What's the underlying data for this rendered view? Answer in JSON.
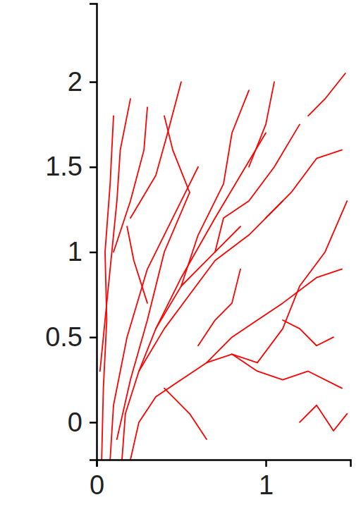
{
  "chart_data": {
    "type": "line",
    "color": "#ff0000",
    "xlim": [
      0,
      1.5
    ],
    "ylim": [
      -0.22,
      2.46
    ],
    "xticks": [
      0,
      1
    ],
    "yticks": [
      0,
      0.5,
      1,
      1.5,
      2
    ],
    "series": [
      {
        "x": [
          0.03,
          0.04,
          0.06,
          0.05,
          0.08,
          0.1
        ],
        "values": [
          -0.22,
          0.2,
          0.6,
          1.0,
          1.4,
          1.8
        ]
      },
      {
        "x": [
          0.08,
          0.1,
          0.18,
          0.3,
          0.45,
          0.6
        ],
        "values": [
          -0.22,
          0.1,
          0.5,
          0.9,
          1.2,
          1.5
        ]
      },
      {
        "x": [
          0.15,
          0.17,
          0.25,
          0.35,
          0.5,
          0.7,
          0.85
        ],
        "values": [
          -0.22,
          0.05,
          0.3,
          0.55,
          0.8,
          1.0,
          1.15
        ]
      },
      {
        "x": [
          0.2,
          0.25,
          0.35,
          0.5,
          0.65,
          0.8,
          0.95
        ],
        "values": [
          -0.22,
          0.0,
          0.15,
          0.25,
          0.35,
          0.4,
          0.35
        ]
      },
      {
        "x": [
          0.12,
          0.2,
          0.3,
          0.4,
          0.55
        ],
        "values": [
          -0.1,
          0.25,
          0.6,
          1.0,
          1.35
        ]
      },
      {
        "x": [
          0.02,
          0.08,
          0.12,
          0.14,
          0.2
        ],
        "values": [
          0.3,
          0.9,
          1.3,
          1.6,
          1.9
        ]
      },
      {
        "x": [
          0.25,
          0.4,
          0.55,
          0.7,
          0.9,
          1.1
        ],
        "values": [
          0.3,
          0.55,
          0.75,
          0.95,
          1.1,
          1.3
        ]
      },
      {
        "x": [
          0.35,
          0.5,
          0.7,
          0.85,
          1.0
        ],
        "values": [
          0.55,
          0.85,
          1.2,
          1.45,
          1.7
        ]
      },
      {
        "x": [
          0.5,
          0.6,
          0.75,
          0.8,
          0.9
        ],
        "values": [
          0.8,
          1.1,
          1.4,
          1.7,
          1.95
        ]
      },
      {
        "x": [
          0.65,
          0.8,
          0.95,
          1.1,
          1.3,
          1.45
        ],
        "values": [
          0.35,
          0.5,
          0.6,
          0.7,
          0.85,
          0.9
        ]
      },
      {
        "x": [
          0.8,
          0.95,
          1.1,
          1.25,
          1.45
        ],
        "values": [
          0.4,
          0.3,
          0.25,
          0.3,
          0.2
        ]
      },
      {
        "x": [
          0.95,
          1.1,
          1.2,
          1.35,
          1.48
        ],
        "values": [
          0.35,
          0.55,
          0.8,
          1.0,
          1.3
        ]
      },
      {
        "x": [
          1.0,
          1.15,
          1.3,
          1.45
        ],
        "values": [
          1.2,
          1.35,
          1.55,
          1.6
        ]
      },
      {
        "x": [
          0.2,
          0.35,
          0.42,
          0.5
        ],
        "values": [
          1.2,
          1.45,
          1.7,
          2.0
        ]
      },
      {
        "x": [
          0.1,
          0.2,
          0.28,
          0.3
        ],
        "values": [
          1.0,
          1.3,
          1.6,
          1.85
        ]
      },
      {
        "x": [
          0.6,
          0.7,
          0.8,
          0.85
        ],
        "values": [
          0.45,
          0.6,
          0.7,
          0.9
        ]
      },
      {
        "x": [
          1.1,
          1.2,
          1.3,
          1.4
        ],
        "values": [
          0.6,
          0.55,
          0.45,
          0.5
        ]
      },
      {
        "x": [
          0.7,
          0.75,
          0.9,
          1.05,
          1.2
        ],
        "values": [
          1.0,
          1.2,
          1.3,
          1.5,
          1.75
        ]
      },
      {
        "x": [
          1.2,
          1.3,
          1.4,
          1.48
        ],
        "values": [
          0.0,
          0.1,
          -0.05,
          0.05
        ]
      },
      {
        "x": [
          0.4,
          0.55,
          0.65
        ],
        "values": [
          0.2,
          0.05,
          -0.1
        ]
      },
      {
        "x": [
          0.9,
          1.0,
          1.05
        ],
        "values": [
          1.5,
          1.75,
          2.0
        ]
      },
      {
        "x": [
          0.3,
          0.22,
          0.18
        ],
        "values": [
          0.7,
          0.95,
          1.15
        ]
      },
      {
        "x": [
          1.25,
          1.35,
          1.47
        ],
        "values": [
          1.8,
          1.9,
          2.05
        ]
      },
      {
        "x": [
          0.55,
          0.45,
          0.4
        ],
        "values": [
          1.35,
          1.6,
          1.8
        ]
      }
    ]
  }
}
